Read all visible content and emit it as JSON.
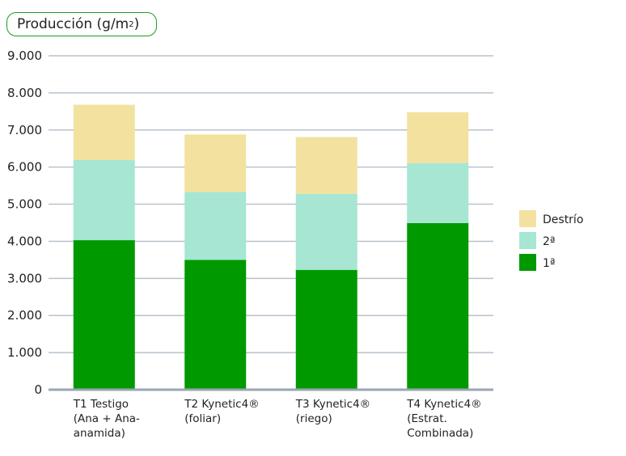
{
  "chart_data": {
    "type": "bar",
    "stacked": true,
    "title": "Producción (g/m2)",
    "title_main": "Producción (g/m",
    "title_sup": "2",
    "title_end": ")",
    "categories": [
      [
        "T1 Testigo",
        "(Ana + Ana-",
        "anamida)"
      ],
      [
        "T2 Kynetic4®",
        "(foliar)"
      ],
      [
        "T3 Kynetic4®",
        "(riego)"
      ],
      [
        "T4 Kynetic4®",
        "(Estrat.",
        "Combinada)"
      ]
    ],
    "series": [
      {
        "name": "1ª",
        "color": "#009900",
        "values": [
          4030,
          3500,
          3230,
          4490
        ]
      },
      {
        "name": "2ª",
        "color": "#a6e6d3",
        "values": [
          2160,
          1830,
          2050,
          1620
        ]
      },
      {
        "name": "Destrío",
        "color": "#f3e19f",
        "values": [
          1490,
          1550,
          1530,
          1370
        ]
      }
    ],
    "legend_order": [
      "Destrío",
      "2ª",
      "1ª"
    ],
    "ylim": [
      0,
      9000
    ],
    "yticks": [
      0,
      1000,
      2000,
      3000,
      4000,
      5000,
      6000,
      7000,
      8000,
      9000
    ],
    "ytick_labels": [
      "0",
      "1.000",
      "2.000",
      "3.000",
      "4.000",
      "5.000",
      "6.000",
      "7.000",
      "8.000",
      "9.000"
    ],
    "grid": true,
    "legend_position": "right"
  }
}
